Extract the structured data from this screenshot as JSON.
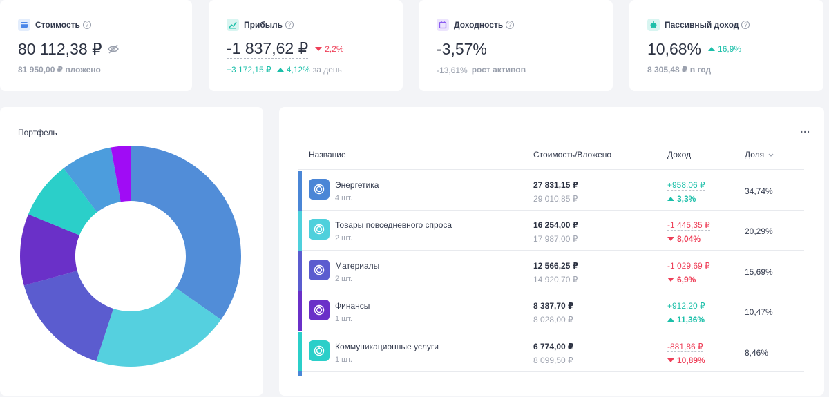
{
  "metrics": [
    {
      "title": "Стоимость",
      "value": "80 112,38 ₽",
      "sub": "81 950,00 ₽ вложено",
      "icon": "wallet-icon",
      "icon_color": "#4a86e8",
      "icon_bg": "#e3edfc"
    },
    {
      "title": "Прибыль",
      "value": "-1 837,62 ₽",
      "delta": "2,2%",
      "sub_value": "+3 172,15 ₽",
      "sub_delta": "4,12%",
      "sub_label": "за день",
      "icon": "chart-icon",
      "icon_color": "#1cbfa9",
      "icon_bg": "#d8f5f1"
    },
    {
      "title": "Доходность",
      "value": "-3,57%",
      "sub_value": "-13,61%",
      "sub_label": "рост активов",
      "icon": "calendar-icon",
      "icon_color": "#8a5cf0",
      "icon_bg": "#ece4fd"
    },
    {
      "title": "Пассивный доход",
      "value": "10,68%",
      "delta": "16,9%",
      "sub": "8 305,48 ₽ в год",
      "icon": "piggy-bank-icon",
      "icon_color": "#1cbfa9",
      "icon_bg": "#d8f5f1"
    }
  ],
  "portfolio": {
    "title": "Портфель",
    "segments": [
      {
        "name": "Энергетика",
        "share": 34.74,
        "color": "#518dd8"
      },
      {
        "name": "Товары повседневного спроса",
        "share": 20.29,
        "color": "#55d0df"
      },
      {
        "name": "Материалы",
        "share": 15.69,
        "color": "#5b5ccf"
      },
      {
        "name": "Финансы",
        "share": 10.47,
        "color": "#6a30c8"
      },
      {
        "name": "Коммуникационные услуги",
        "share": 8.46,
        "color": "#2bcfc9"
      },
      {
        "name": "",
        "share": 7.5,
        "color": "#4c9ddd"
      },
      {
        "name": "",
        "share": 2.85,
        "color": "#a00cf5"
      }
    ]
  },
  "table": {
    "more_label": "...",
    "headers": {
      "name": "Название",
      "value": "Стоимость/Вложено",
      "income": "Доход",
      "share": "Доля"
    },
    "rows": [
      {
        "name": "Энергетика",
        "qty": "4 шт.",
        "value": "27 831,15 ₽",
        "invested": "29 010,85 ₽",
        "income": "+958,06 ₽",
        "income_pct": "3,3%",
        "direction": "up",
        "share": "34,74%",
        "color": "#4a86d6"
      },
      {
        "name": "Товары повседневного спроса",
        "qty": "2 шт.",
        "value": "16 254,00 ₽",
        "invested": "17 987,00 ₽",
        "income": "-1 445,35 ₽",
        "income_pct": "8,04%",
        "direction": "down",
        "share": "20,29%",
        "color": "#4fd0dc"
      },
      {
        "name": "Материалы",
        "qty": "2 шт.",
        "value": "12 566,25 ₽",
        "invested": "14 920,70 ₽",
        "income": "-1 029,69 ₽",
        "income_pct": "6,9%",
        "direction": "down",
        "share": "15,69%",
        "color": "#5b5ccf"
      },
      {
        "name": "Финансы",
        "qty": "1 шт.",
        "value": "8 387,70 ₽",
        "invested": "8 028,00 ₽",
        "income": "+912,20 ₽",
        "income_pct": "11,36%",
        "direction": "up",
        "share": "10,47%",
        "color": "#6a30c8"
      },
      {
        "name": "Коммуникационные услуги",
        "qty": "1 шт.",
        "value": "6 774,00 ₽",
        "invested": "8 099,50 ₽",
        "income": "-881,86 ₽",
        "income_pct": "10,89%",
        "direction": "down",
        "share": "8,46%",
        "color": "#2bcfc9"
      }
    ]
  }
}
